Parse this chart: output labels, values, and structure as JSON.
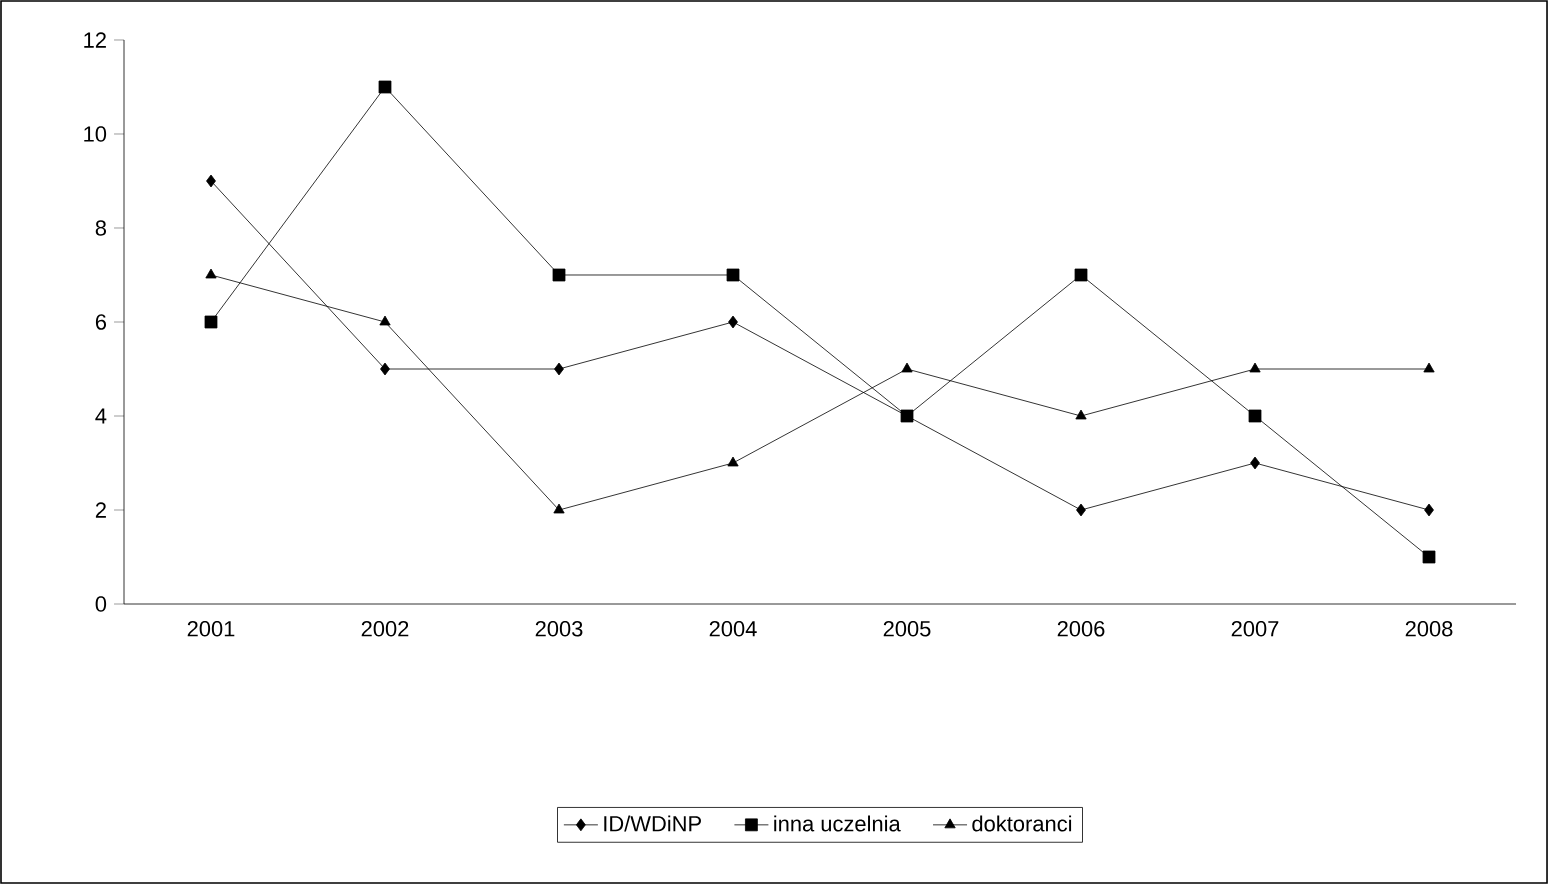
{
  "chart_data": {
    "type": "line",
    "categories": [
      "2001",
      "2002",
      "2003",
      "2004",
      "2005",
      "2006",
      "2007",
      "2008"
    ],
    "series": [
      {
        "name": "ID/WDiNP",
        "color": "#000000",
        "marker": "diamond",
        "values": [
          9,
          5,
          5,
          6,
          4,
          2,
          3,
          2
        ]
      },
      {
        "name": "inna uczelnia",
        "color": "#000000",
        "marker": "square",
        "values": [
          6,
          11,
          7,
          7,
          4,
          7,
          4,
          1
        ]
      },
      {
        "name": "doktoranci",
        "color": "#000000",
        "marker": "triangle",
        "values": [
          7,
          6,
          2,
          3,
          5,
          4,
          5,
          5
        ]
      }
    ],
    "ylim": [
      0,
      12
    ],
    "yticks": [
      0,
      2,
      4,
      6,
      8,
      10,
      12
    ],
    "grid": false,
    "legend": "bottom",
    "line_style": "solid"
  }
}
